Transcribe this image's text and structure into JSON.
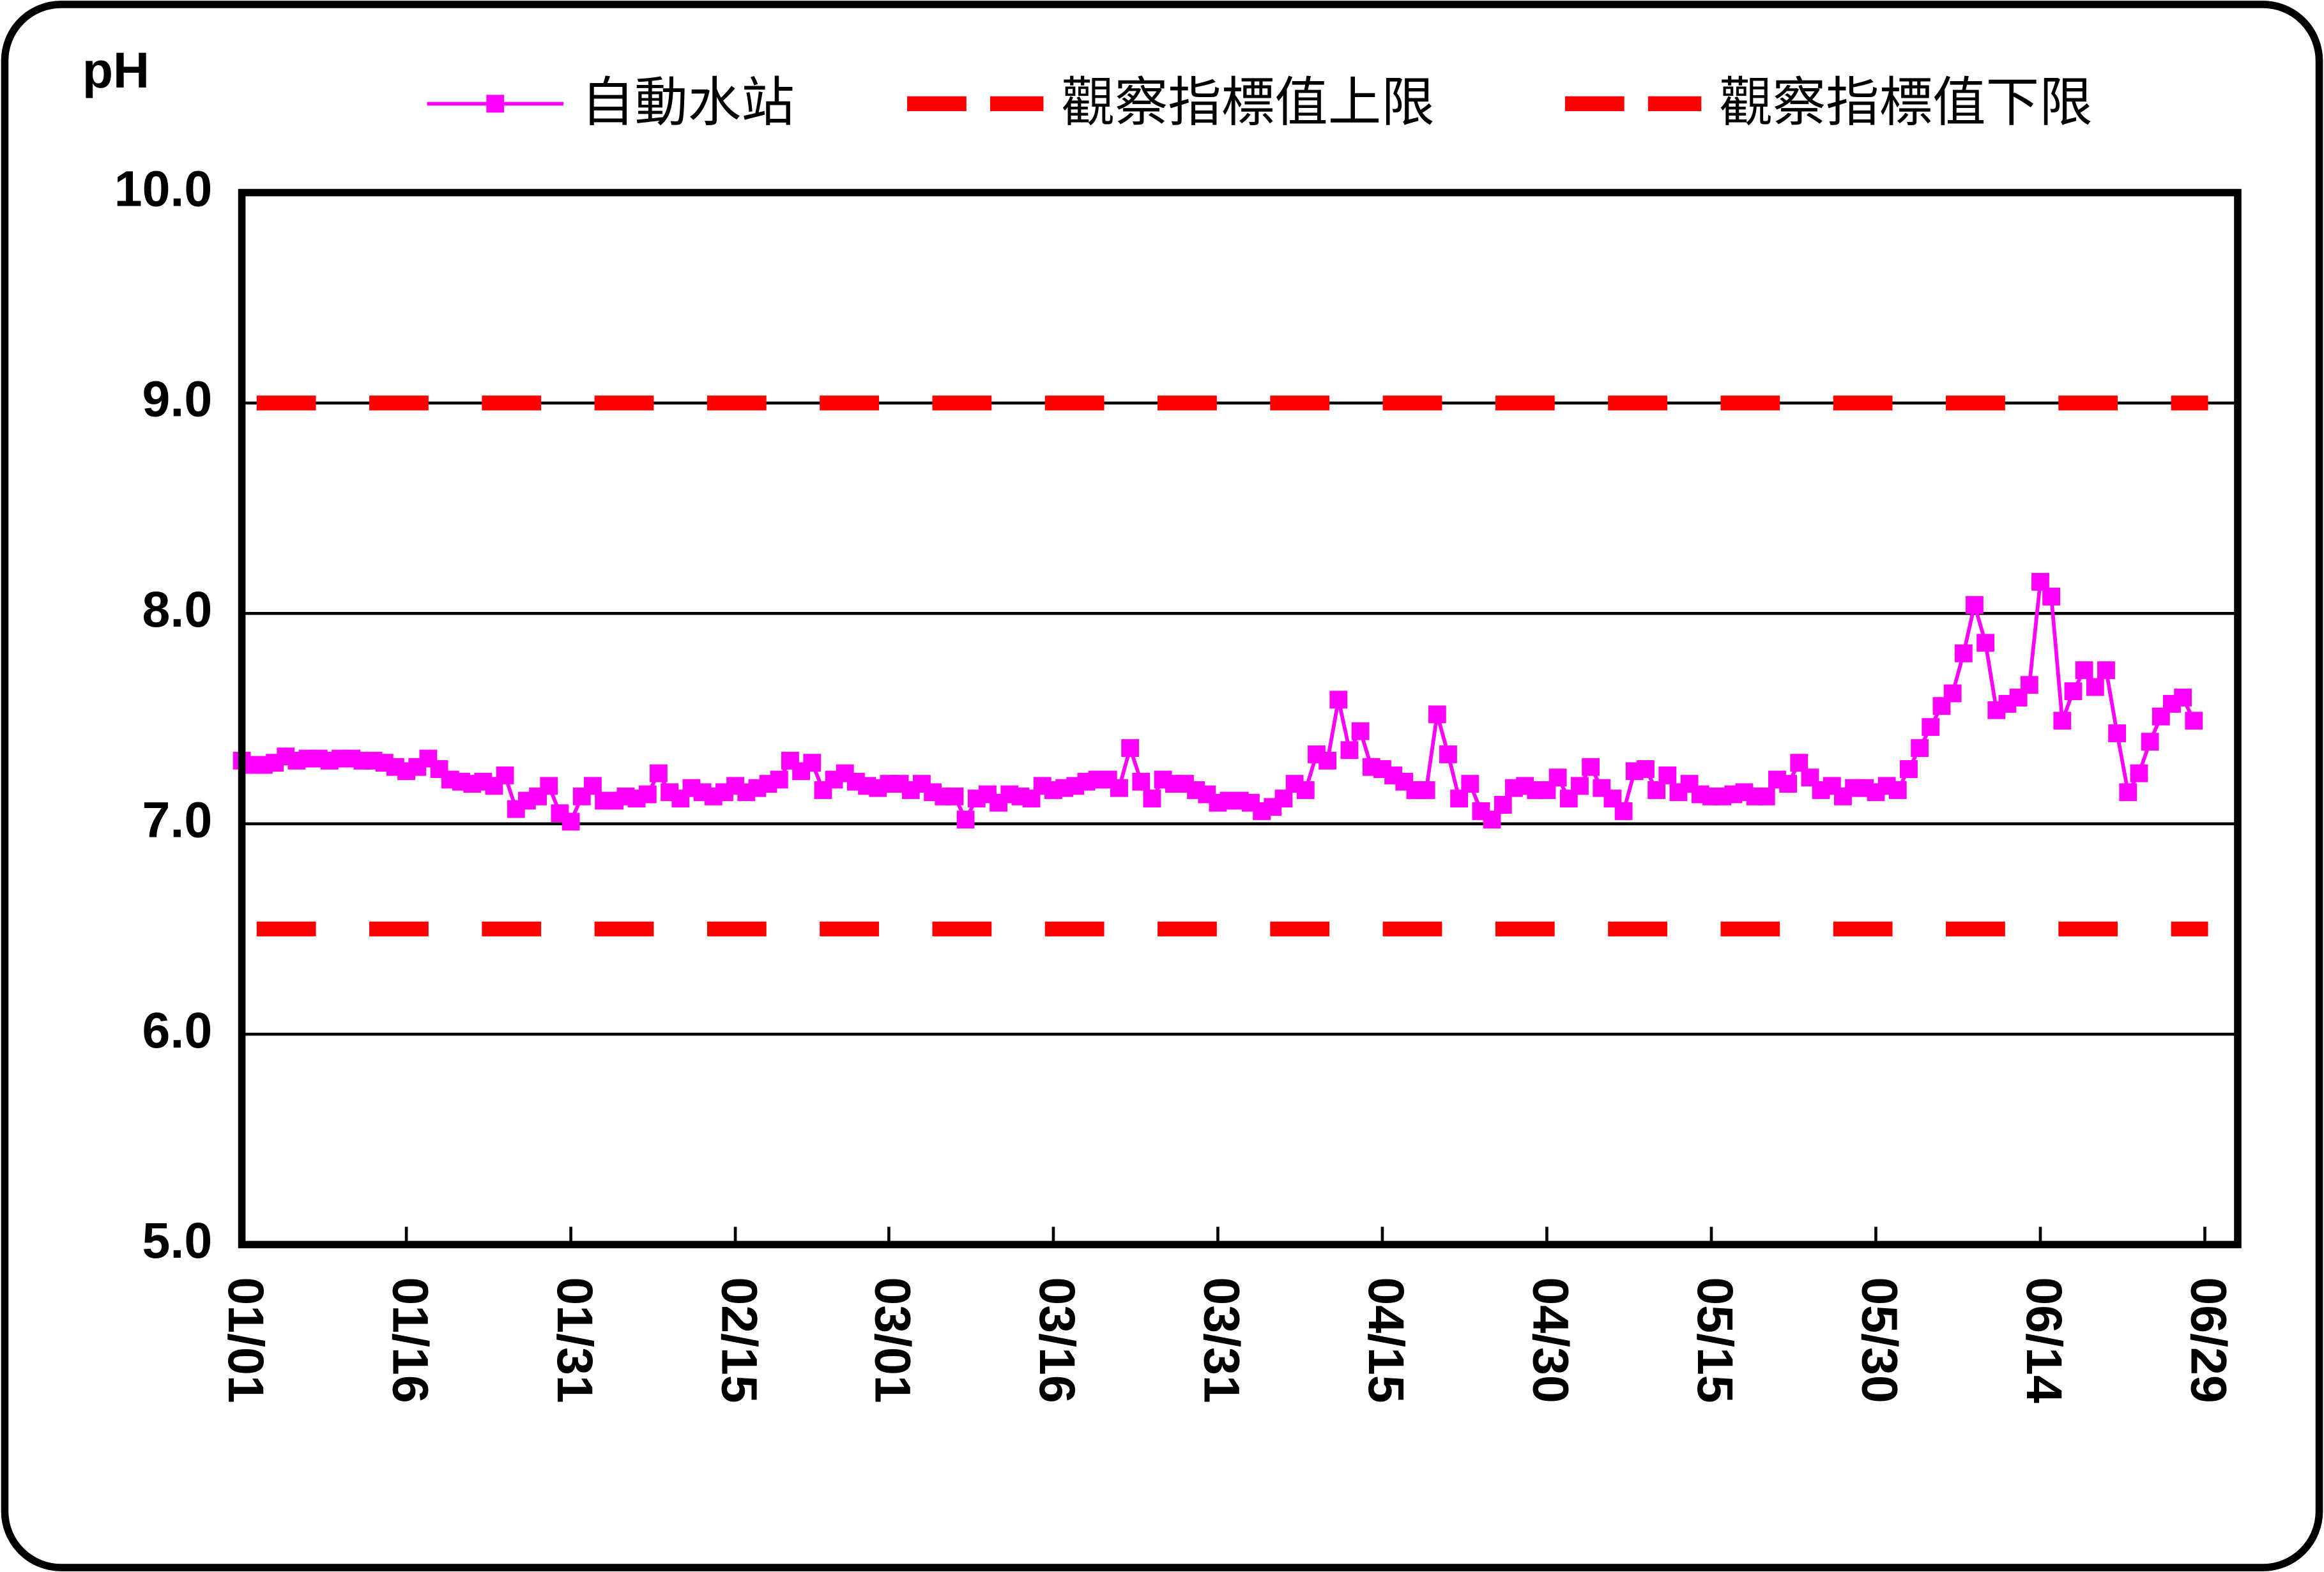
{
  "chart_data": {
    "type": "line",
    "y_label": "pH",
    "x": [
      "01/01",
      "01/02",
      "01/03",
      "01/04",
      "01/05",
      "01/06",
      "01/07",
      "01/08",
      "01/09",
      "01/10",
      "01/11",
      "01/12",
      "01/13",
      "01/14",
      "01/15",
      "01/16",
      "01/17",
      "01/18",
      "01/19",
      "01/20",
      "01/21",
      "01/22",
      "01/23",
      "01/24",
      "01/25",
      "01/26",
      "01/27",
      "01/28",
      "01/29",
      "01/30",
      "01/31",
      "02/01",
      "02/02",
      "02/03",
      "02/04",
      "02/05",
      "02/06",
      "02/07",
      "02/08",
      "02/09",
      "02/10",
      "02/11",
      "02/12",
      "02/13",
      "02/14",
      "02/15",
      "02/16",
      "02/17",
      "02/18",
      "02/19",
      "02/20",
      "02/21",
      "02/22",
      "02/23",
      "02/24",
      "02/25",
      "02/26",
      "02/27",
      "02/28",
      "03/01",
      "03/02",
      "03/03",
      "03/04",
      "03/05",
      "03/06",
      "03/07",
      "03/08",
      "03/09",
      "03/10",
      "03/11",
      "03/12",
      "03/13",
      "03/14",
      "03/15",
      "03/16",
      "03/17",
      "03/18",
      "03/19",
      "03/20",
      "03/21",
      "03/22",
      "03/23",
      "03/24",
      "03/25",
      "03/26",
      "03/27",
      "03/28",
      "03/29",
      "03/30",
      "03/31",
      "04/01",
      "04/02",
      "04/03",
      "04/04",
      "04/05",
      "04/06",
      "04/07",
      "04/08",
      "04/09",
      "04/10",
      "04/11",
      "04/12",
      "04/13",
      "04/14",
      "04/15",
      "04/16",
      "04/17",
      "04/18",
      "04/19",
      "04/20",
      "04/21",
      "04/22",
      "04/23",
      "04/24",
      "04/25",
      "04/26",
      "04/27",
      "04/28",
      "04/29",
      "04/30",
      "05/01",
      "05/02",
      "05/03",
      "05/04",
      "05/05",
      "05/06",
      "05/07",
      "05/08",
      "05/09",
      "05/10",
      "05/11",
      "05/12",
      "05/13",
      "05/14",
      "05/15",
      "05/16",
      "05/17",
      "05/18",
      "05/19",
      "05/20",
      "05/21",
      "05/22",
      "05/23",
      "05/24",
      "05/25",
      "05/26",
      "05/27",
      "05/28",
      "05/29",
      "05/30",
      "05/31",
      "06/01",
      "06/02",
      "06/03",
      "06/04",
      "06/05",
      "06/06",
      "06/07",
      "06/08",
      "06/09",
      "06/10",
      "06/11",
      "06/12",
      "06/13",
      "06/14",
      "06/15",
      "06/16",
      "06/17",
      "06/18",
      "06/19",
      "06/20",
      "06/21",
      "06/22",
      "06/23",
      "06/24",
      "06/25",
      "06/26",
      "06/27",
      "06/28",
      "06/29"
    ],
    "xticks": [
      "01/01",
      "01/16",
      "01/31",
      "02/15",
      "03/01",
      "03/16",
      "03/31",
      "04/15",
      "04/30",
      "05/15",
      "05/30",
      "06/14",
      "06/29"
    ],
    "series": [
      {
        "name": "自動水站",
        "color": "#ff00ff",
        "values": [
          7.3,
          7.28,
          7.28,
          7.29,
          7.32,
          7.3,
          7.31,
          7.31,
          7.3,
          7.31,
          7.31,
          7.3,
          7.3,
          7.29,
          7.27,
          7.25,
          7.27,
          7.31,
          7.26,
          7.21,
          7.2,
          7.19,
          7.2,
          7.18,
          7.23,
          7.07,
          7.11,
          7.13,
          7.18,
          7.05,
          7.01,
          7.13,
          7.18,
          7.11,
          7.11,
          7.13,
          7.12,
          7.14,
          7.24,
          7.15,
          7.12,
          7.17,
          7.15,
          7.13,
          7.15,
          7.18,
          7.15,
          7.17,
          7.19,
          7.21,
          7.3,
          7.25,
          7.29,
          7.16,
          7.21,
          7.24,
          7.2,
          7.18,
          7.17,
          7.19,
          7.19,
          7.16,
          7.19,
          7.15,
          7.13,
          7.13,
          7.02,
          7.12,
          7.14,
          7.1,
          7.14,
          7.13,
          7.12,
          7.18,
          7.16,
          7.17,
          7.18,
          7.2,
          7.21,
          7.21,
          7.17,
          7.36,
          7.2,
          7.12,
          7.21,
          7.19,
          7.19,
          7.16,
          7.14,
          7.1,
          7.11,
          7.11,
          7.1,
          7.06,
          7.08,
          7.12,
          7.19,
          7.16,
          7.33,
          7.3,
          7.59,
          7.35,
          7.44,
          7.27,
          7.26,
          7.23,
          7.2,
          7.16,
          7.16,
          7.52,
          7.33,
          7.12,
          7.19,
          7.06,
          7.02,
          7.09,
          7.17,
          7.18,
          7.16,
          7.16,
          7.22,
          7.12,
          7.18,
          7.27,
          7.17,
          7.12,
          7.06,
          7.25,
          7.26,
          7.16,
          7.23,
          7.15,
          7.19,
          7.14,
          7.13,
          7.13,
          7.14,
          7.15,
          7.13,
          7.13,
          7.21,
          7.19,
          7.29,
          7.22,
          7.16,
          7.18,
          7.13,
          7.17,
          7.17,
          7.15,
          7.18,
          7.16,
          7.26,
          7.36,
          7.46,
          7.56,
          7.62,
          7.81,
          8.04,
          7.86,
          7.54,
          7.57,
          7.6,
          7.66,
          8.15,
          8.08,
          7.49,
          7.63,
          7.73,
          7.65,
          7.73,
          7.43,
          7.15,
          7.24,
          7.39,
          7.51,
          7.57,
          7.6,
          7.49,
          null
        ]
      },
      {
        "name": "觀察指標值上限",
        "color": "#ff0000",
        "value": 9.0
      },
      {
        "name": "觀察指標值下限",
        "color": "#ff0000",
        "value": 6.5
      }
    ],
    "ylim": [
      5,
      10
    ],
    "yticks": [
      {
        "value": 5,
        "label": "5.0"
      },
      {
        "value": 6,
        "label": "6.0"
      },
      {
        "value": 7,
        "label": "7.0"
      },
      {
        "value": 8,
        "label": "8.0"
      },
      {
        "value": 9,
        "label": "9.0"
      },
      {
        "value": 10,
        "label": "10.0"
      }
    ],
    "grid": true
  }
}
